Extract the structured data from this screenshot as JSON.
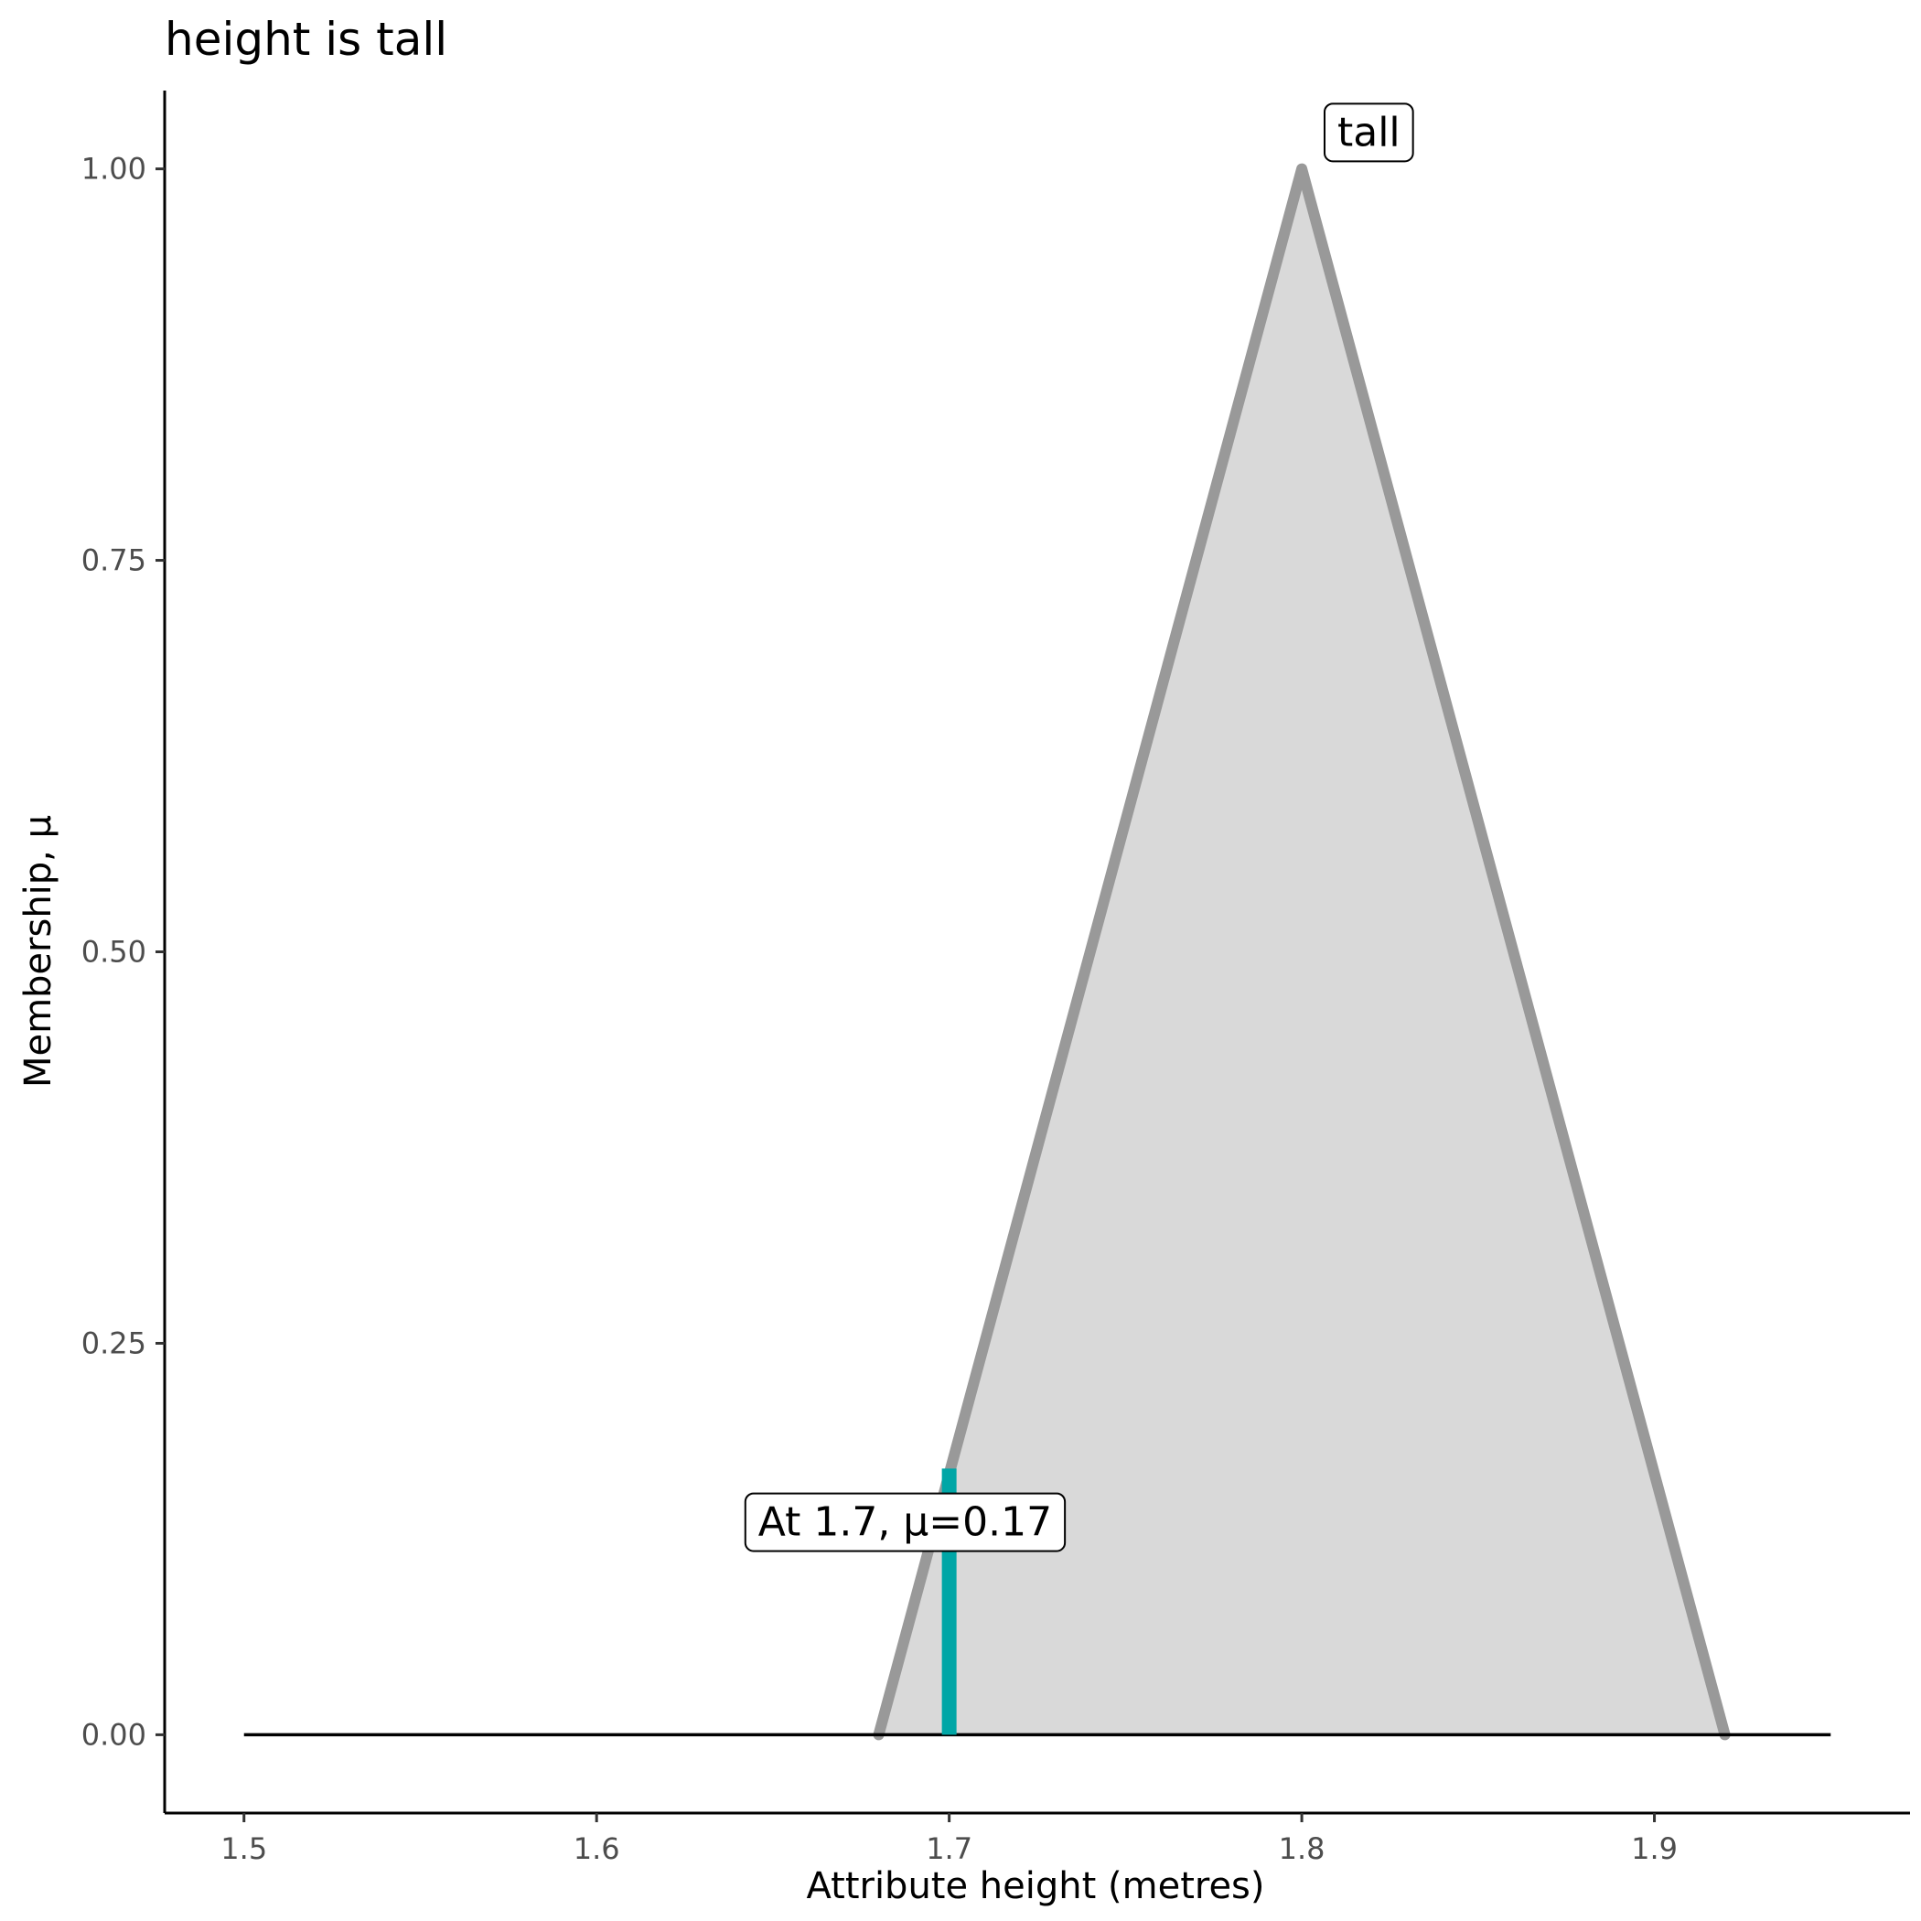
{
  "chart_data": {
    "type": "area",
    "title": "height is tall",
    "xlabel": "Attribute height (metres)",
    "ylabel": "Membership, μ",
    "xlim": [
      1.4775,
      1.9725
    ],
    "ylim": [
      -0.05,
      1.05
    ],
    "x_ticks": [
      1.5,
      1.6,
      1.7,
      1.8,
      1.9
    ],
    "x_tick_labels": [
      "1.5",
      "1.6",
      "1.7",
      "1.8",
      "1.9"
    ],
    "y_ticks": [
      0,
      0.25,
      0.5,
      0.75,
      1
    ],
    "y_tick_labels": [
      "0.00",
      "0.25",
      "0.50",
      "0.75",
      "1.00"
    ],
    "grid": false,
    "baseline": {
      "x": [
        1.5,
        1.95
      ],
      "y": 0
    },
    "series": [
      {
        "name": "tall",
        "x": [
          1.68,
          1.8,
          1.92
        ],
        "y": [
          0,
          1,
          0
        ],
        "line_color": "#999999",
        "fill_color": "#d9d9d9"
      }
    ],
    "marker": {
      "x": 1.7,
      "y": 0.17,
      "color": "#00a6a6"
    },
    "annotations": [
      {
        "id": "tall-label",
        "text": "tall",
        "x": 1.819,
        "y": 1.0235
      },
      {
        "id": "value-label",
        "text": "At 1.7, μ=0.17",
        "x": 1.6875,
        "y": 0.136
      }
    ]
  }
}
